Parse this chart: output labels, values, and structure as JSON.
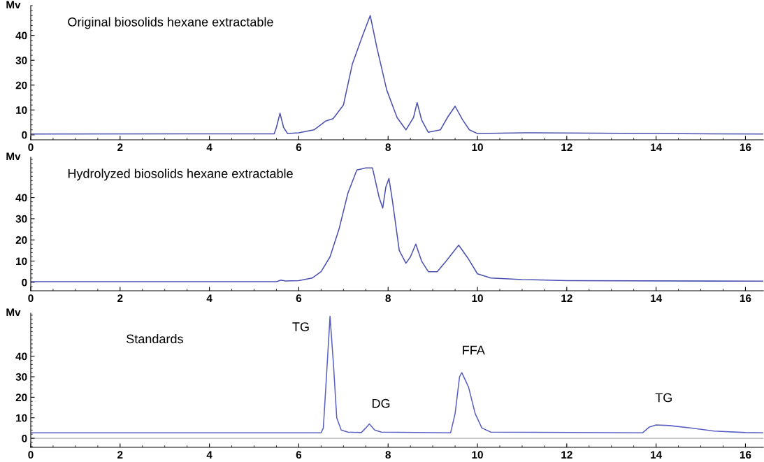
{
  "chart_data": [
    {
      "type": "line",
      "title": "Original biosolids hexane extractable",
      "ylabel": "Mv",
      "xlim": [
        0,
        16.4
      ],
      "ylim": [
        -2,
        52
      ],
      "xticks": [
        0,
        2,
        4,
        6,
        8,
        10,
        12,
        14,
        16
      ],
      "yticks": [
        0,
        10,
        20,
        30,
        40
      ],
      "grid": false,
      "legend": false,
      "series": [
        {
          "color": "#4b50b0",
          "x": [
            0,
            5.45,
            5.5,
            5.58,
            5.66,
            5.75,
            6.0,
            6.34,
            6.6,
            6.77,
            7.0,
            7.2,
            7.43,
            7.6,
            7.75,
            7.97,
            8.2,
            8.4,
            8.57,
            8.65,
            8.75,
            8.9,
            9.17,
            9.33,
            9.5,
            9.67,
            9.82,
            10.0,
            11.07,
            16.4
          ],
          "values": [
            0.3,
            0.4,
            3,
            8.7,
            3,
            0.5,
            0.8,
            2,
            5.5,
            6.5,
            12,
            28.5,
            40,
            48,
            35,
            18,
            7,
            2,
            7,
            13,
            6,
            1,
            2,
            7,
            11.5,
            6,
            2,
            0.5,
            0.8,
            0.3
          ]
        }
      ]
    },
    {
      "type": "line",
      "title": "Hydrolyzed biosolids hexane extractable",
      "ylabel": "Mv",
      "xlim": [
        0,
        16.4
      ],
      "ylim": [
        -4,
        59
      ],
      "xticks": [
        0,
        2,
        4,
        6,
        8,
        10,
        12,
        14,
        16
      ],
      "yticks": [
        0,
        10,
        20,
        30,
        40
      ],
      "grid": false,
      "legend": false,
      "series": [
        {
          "color": "#4b50b0",
          "x": [
            0,
            5.5,
            5.6,
            5.7,
            6.0,
            6.3,
            6.5,
            6.7,
            6.9,
            7.1,
            7.3,
            7.5,
            7.65,
            7.8,
            7.88,
            7.95,
            8.02,
            8.1,
            8.25,
            8.4,
            8.5,
            8.62,
            8.75,
            8.9,
            9.1,
            9.3,
            9.58,
            9.8,
            10.0,
            10.3,
            11.0,
            12.0,
            16.4
          ],
          "values": [
            0.3,
            0.3,
            1,
            0.6,
            0.8,
            2,
            5,
            12,
            25,
            42,
            53,
            54,
            54,
            40,
            35,
            45,
            49,
            38,
            15,
            9,
            12,
            18,
            10,
            5,
            5,
            10,
            17.5,
            11,
            4,
            2,
            1.3,
            0.8,
            0.5
          ]
        }
      ]
    },
    {
      "type": "line",
      "title": "Standards",
      "ylabel": "Mv",
      "xlim": [
        0,
        16.4
      ],
      "ylim": [
        -4.4,
        61
      ],
      "xticks": [
        0,
        2,
        4,
        6,
        8,
        10,
        12,
        14,
        16
      ],
      "yticks": [
        0,
        10,
        20,
        30,
        40
      ],
      "grid": false,
      "legend": false,
      "ref_lines": [
        {
          "axis": "y",
          "value": 0,
          "color": "#b0b0b0"
        }
      ],
      "annotations": [
        {
          "text": "TG",
          "x": 6.7,
          "y": 59.5
        },
        {
          "text": "DG",
          "x": 7.58,
          "y": 7
        },
        {
          "text": "FFA",
          "x": 9.65,
          "y": 32
        },
        {
          "text": "TG",
          "x": 14.0,
          "y": 6.5
        }
      ],
      "series": [
        {
          "color": "#5a5fc4",
          "x": [
            0,
            6.5,
            6.55,
            6.62,
            6.7,
            6.78,
            6.85,
            6.95,
            7.1,
            7.4,
            7.5,
            7.58,
            7.7,
            7.85,
            9.4,
            9.5,
            9.6,
            9.65,
            9.8,
            9.95,
            10.1,
            10.3,
            13.7,
            13.85,
            14.0,
            14.3,
            14.8,
            15.3,
            16.0,
            16.4
          ],
          "values": [
            2.7,
            2.7,
            5,
            30,
            59.5,
            35,
            10,
            4,
            3,
            2.8,
            5,
            7,
            4,
            3,
            2.7,
            12,
            30,
            32,
            25,
            12,
            5,
            3,
            2.7,
            5.5,
            6.5,
            6.2,
            5,
            3.5,
            2.8,
            2.7
          ]
        }
      ]
    }
  ]
}
